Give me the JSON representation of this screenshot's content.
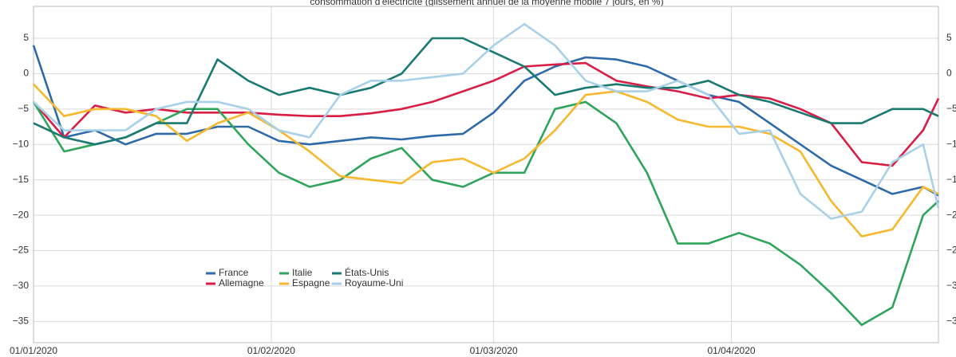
{
  "chart_data": {
    "type": "line",
    "title": "consommation d'électricité (glissement annuel de la moyenne mobile 7 jours, en %)",
    "x": [
      "2020-01-01",
      "2020-01-05",
      "2020-01-09",
      "2020-01-13",
      "2020-01-17",
      "2020-01-21",
      "2020-01-25",
      "2020-01-29",
      "2020-02-02",
      "2020-02-06",
      "2020-02-10",
      "2020-02-14",
      "2020-02-18",
      "2020-02-22",
      "2020-02-26",
      "2020-03-01",
      "2020-03-05",
      "2020-03-09",
      "2020-03-13",
      "2020-03-17",
      "2020-03-21",
      "2020-03-25",
      "2020-03-29",
      "2020-04-02",
      "2020-04-06",
      "2020-04-10",
      "2020-04-14",
      "2020-04-18",
      "2020-04-22",
      "2020-04-26",
      "2020-04-28"
    ],
    "series": [
      {
        "name": "France",
        "color": "#2e6aa8",
        "values": [
          4,
          -9,
          -8,
          -10,
          -8.5,
          -8.5,
          -7.5,
          -7.5,
          -9.5,
          -10,
          -9.5,
          -9,
          -9.3,
          -8.8,
          -8.5,
          -5.5,
          -1,
          1,
          2.3,
          2,
          1,
          -1,
          -3,
          -4,
          -7,
          -10,
          -13,
          -15,
          -17,
          -16,
          -17.2
        ]
      },
      {
        "name": "Allemagne",
        "color": "#d81e45",
        "values": [
          -4,
          -9,
          -4.5,
          -5.5,
          -5,
          -5.5,
          -5.5,
          -5.5,
          -5.8,
          -6,
          -6,
          -5.6,
          -5,
          -4,
          -2.5,
          -1,
          1,
          1.3,
          1.5,
          -1,
          -1.8,
          -2.5,
          -3.5,
          -3,
          -3.5,
          -5,
          -7,
          -12.5,
          -13,
          -8,
          -3.5
        ]
      },
      {
        "name": "Italie",
        "color": "#2ea55a",
        "values": [
          -4,
          -11,
          -10,
          -9,
          -7,
          -5,
          -5,
          -10,
          -14,
          -16,
          -15,
          -12,
          -10.5,
          -15,
          -16,
          -14,
          -14,
          -5,
          -4,
          -7,
          -14,
          -24,
          -24,
          -22.5,
          -24,
          -27,
          -31,
          -35.5,
          -33,
          -20,
          -18
        ]
      },
      {
        "name": "Espagne",
        "color": "#f5b82e",
        "values": [
          -1.5,
          -6,
          -5,
          -5,
          -6,
          -9.5,
          -7,
          -5.5,
          -8,
          -11,
          -14.5,
          -15,
          -15.5,
          -12.5,
          -12,
          -14,
          -12,
          -8,
          -3,
          -2.5,
          -4,
          -6.5,
          -7.5,
          -7.5,
          -8.5,
          -11,
          -18,
          -23,
          -22,
          -16,
          -17
        ]
      },
      {
        "name": "États-Unis",
        "color": "#1a7a72",
        "values": [
          -7,
          -9,
          -10,
          -9,
          -7,
          -7,
          2,
          -1,
          -3,
          -2,
          -3,
          -2,
          0,
          5,
          5,
          3,
          1,
          -3,
          -2,
          -1.5,
          -2,
          -2,
          -1,
          -3,
          -4,
          -5.5,
          -7,
          -7,
          -5,
          -5,
          -6
        ]
      },
      {
        "name": "Royaume-Uni",
        "color": "#a8d0e8",
        "values": [
          -4,
          -8,
          -8,
          -8,
          -5,
          -4,
          -4,
          -5,
          -8,
          -9,
          -3,
          -1,
          -1,
          -0.5,
          0,
          4,
          7,
          4,
          -1,
          -2.5,
          -2.5,
          -1,
          -3,
          -8.5,
          -8,
          -17,
          -20.5,
          -19.5,
          -12.5,
          -10,
          -19
        ]
      }
    ],
    "xlim": [
      "2020-01-01",
      "2020-04-28"
    ],
    "xticks": [
      {
        "value": "2020-01-01",
        "label": "01/01/2020"
      },
      {
        "value": "2020-02-01",
        "label": "01/02/2020"
      },
      {
        "value": "2020-03-01",
        "label": "01/03/2020"
      },
      {
        "value": "2020-04-01",
        "label": "01/04/2020"
      }
    ],
    "ylim": [
      -38,
      9.5
    ],
    "yticks": [
      {
        "value": -35,
        "label": "−35"
      },
      {
        "value": -30,
        "label": "−30"
      },
      {
        "value": -25,
        "label": "−25"
      },
      {
        "value": -20,
        "label": "−20"
      },
      {
        "value": -15,
        "label": "−15"
      },
      {
        "value": -10,
        "label": "−10"
      },
      {
        "value": -5,
        "label": "−5"
      },
      0,
      5
    ],
    "grid": true
  }
}
